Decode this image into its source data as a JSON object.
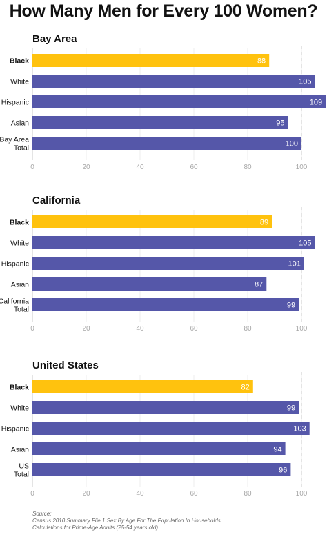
{
  "title": "How Many Men for Every 100 Women?",
  "colors": {
    "highlight": "#FFC20E",
    "bar": "#5557A9",
    "axis": "#c8c8c8"
  },
  "chart_data": [
    {
      "type": "bar",
      "orientation": "horizontal",
      "title": "Bay Area",
      "categories": [
        "Black",
        "White",
        "Hispanic",
        "Asian",
        "Bay Area\nTotal"
      ],
      "values": [
        88,
        105,
        109,
        95,
        100
      ],
      "highlight": [
        true,
        false,
        false,
        false,
        false
      ],
      "xticks": [
        0,
        20,
        40,
        60,
        80,
        100
      ],
      "xlim": [
        0,
        100
      ],
      "reference_line": 100
    },
    {
      "type": "bar",
      "orientation": "horizontal",
      "title": "California",
      "categories": [
        "Black",
        "White",
        "Hispanic",
        "Asian",
        "California\nTotal"
      ],
      "values": [
        89,
        105,
        101,
        87,
        99
      ],
      "highlight": [
        true,
        false,
        false,
        false,
        false
      ],
      "xticks": [
        0,
        20,
        40,
        60,
        80,
        100
      ],
      "xlim": [
        0,
        100
      ],
      "reference_line": 100
    },
    {
      "type": "bar",
      "orientation": "horizontal",
      "title": "United States",
      "categories": [
        "Black",
        "White",
        "Hispanic",
        "Asian",
        "US\nTotal"
      ],
      "values": [
        82,
        99,
        103,
        94,
        96
      ],
      "highlight": [
        true,
        false,
        false,
        false,
        false
      ],
      "xticks": [
        0,
        20,
        40,
        60,
        80,
        100
      ],
      "xlim": [
        0,
        100
      ],
      "reference_line": 100
    }
  ],
  "source": {
    "label": "Source:",
    "line1": "Census 2010 Summary File 1 Sex By Age For The Population In Households.",
    "line2": "Calculations for Prime-Age Adults (25-54 years old)."
  }
}
